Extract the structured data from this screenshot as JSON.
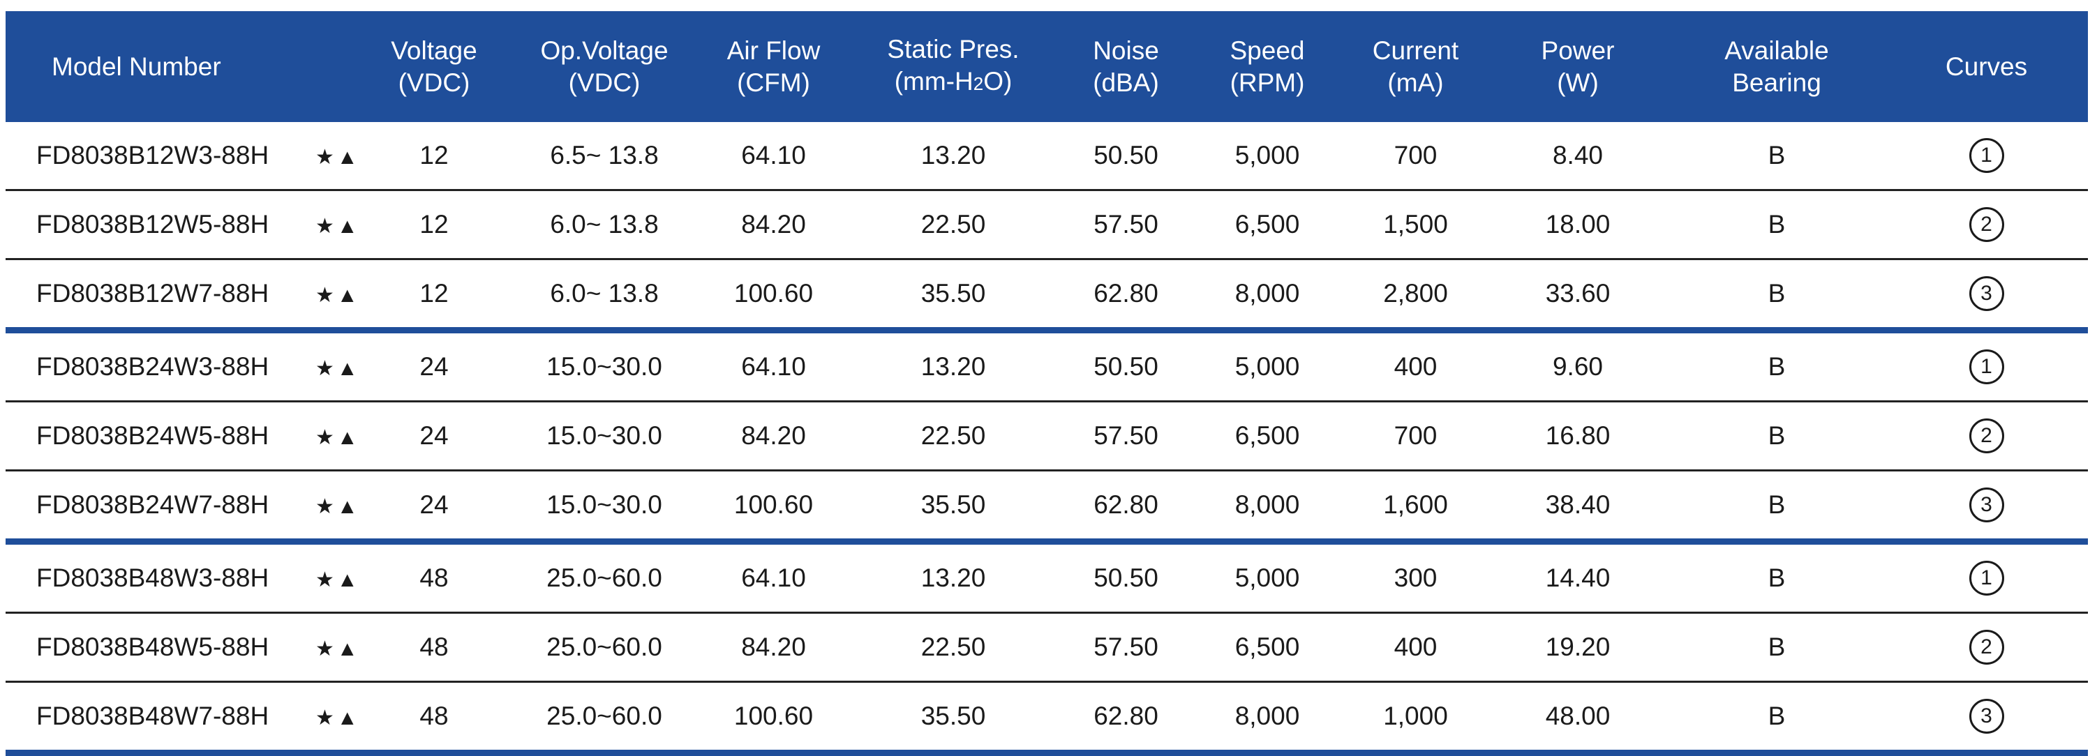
{
  "header": {
    "model": "Model Number",
    "voltage": [
      "Voltage",
      "(VDC)"
    ],
    "op_voltage": [
      "Op.Voltage",
      "(VDC)"
    ],
    "airflow": [
      "Air Flow",
      "(CFM)"
    ],
    "static_pres": [
      "Static Pres.",
      "(mm-H",
      "2",
      "O)"
    ],
    "noise": [
      "Noise",
      "(dBA)"
    ],
    "speed": [
      "Speed",
      "(RPM)"
    ],
    "current": [
      "Current",
      "(mA)"
    ],
    "power": [
      "Power",
      "(W)"
    ],
    "bearing": [
      "Available",
      "Bearing"
    ],
    "curves": "Curves"
  },
  "rows": [
    {
      "model": "FD8038B12W3-88H",
      "marks": "★▲",
      "voltage": "12",
      "op_voltage": "6.5~ 13.8",
      "airflow": "64.10",
      "static_pres": "13.20",
      "noise": "50.50",
      "speed": "5,000",
      "current": "700",
      "power": "8.40",
      "bearing": "B",
      "curve": "1"
    },
    {
      "model": "FD8038B12W5-88H",
      "marks": "★▲",
      "voltage": "12",
      "op_voltage": "6.0~ 13.8",
      "airflow": "84.20",
      "static_pres": "22.50",
      "noise": "57.50",
      "speed": "6,500",
      "current": "1,500",
      "power": "18.00",
      "bearing": "B",
      "curve": "2"
    },
    {
      "model": "FD8038B12W7-88H",
      "marks": "★▲",
      "voltage": "12",
      "op_voltage": "6.0~ 13.8",
      "airflow": "100.60",
      "static_pres": "35.50",
      "noise": "62.80",
      "speed": "8,000",
      "current": "2,800",
      "power": "33.60",
      "bearing": "B",
      "curve": "3"
    },
    {
      "model": "FD8038B24W3-88H",
      "marks": "★▲",
      "voltage": "24",
      "op_voltage": "15.0~30.0",
      "airflow": "64.10",
      "static_pres": "13.20",
      "noise": "50.50",
      "speed": "5,000",
      "current": "400",
      "power": "9.60",
      "bearing": "B",
      "curve": "1"
    },
    {
      "model": "FD8038B24W5-88H",
      "marks": "★▲",
      "voltage": "24",
      "op_voltage": "15.0~30.0",
      "airflow": "84.20",
      "static_pres": "22.50",
      "noise": "57.50",
      "speed": "6,500",
      "current": "700",
      "power": "16.80",
      "bearing": "B",
      "curve": "2"
    },
    {
      "model": "FD8038B24W7-88H",
      "marks": "★▲",
      "voltage": "24",
      "op_voltage": "15.0~30.0",
      "airflow": "100.60",
      "static_pres": "35.50",
      "noise": "62.80",
      "speed": "8,000",
      "current": "1,600",
      "power": "38.40",
      "bearing": "B",
      "curve": "3"
    },
    {
      "model": "FD8038B48W3-88H",
      "marks": "★▲",
      "voltage": "48",
      "op_voltage": "25.0~60.0",
      "airflow": "64.10",
      "static_pres": "13.20",
      "noise": "50.50",
      "speed": "5,000",
      "current": "300",
      "power": "14.40",
      "bearing": "B",
      "curve": "1"
    },
    {
      "model": "FD8038B48W5-88H",
      "marks": "★▲",
      "voltage": "48",
      "op_voltage": "25.0~60.0",
      "airflow": "84.20",
      "static_pres": "22.50",
      "noise": "57.50",
      "speed": "6,500",
      "current": "400",
      "power": "19.20",
      "bearing": "B",
      "curve": "2"
    },
    {
      "model": "FD8038B48W7-88H",
      "marks": "★▲",
      "voltage": "48",
      "op_voltage": "25.0~60.0",
      "airflow": "100.60",
      "static_pres": "35.50",
      "noise": "62.80",
      "speed": "8,000",
      "current": "1,000",
      "power": "48.00",
      "bearing": "B",
      "curve": "3"
    }
  ],
  "colors": {
    "header_bg": "#1f4e9a",
    "group_rule": "#1f4e9a",
    "row_rule": "#222222"
  }
}
